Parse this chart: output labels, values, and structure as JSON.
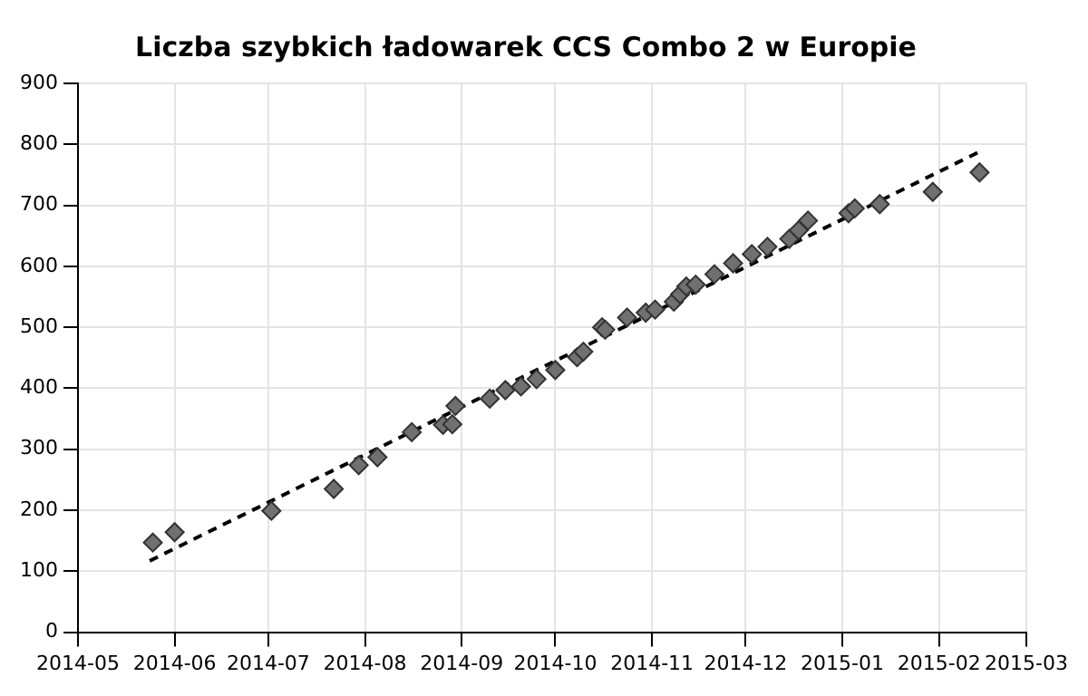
{
  "chart_data": {
    "type": "scatter",
    "title": "Liczba szybkich ładowarek CCS Combo 2 w Europie",
    "marker": "diamond",
    "grid": true,
    "legend": false,
    "xlim": [
      "2014-05-01",
      "2015-03-01"
    ],
    "xticks": [
      {
        "value": "2014-05-01",
        "label": "2014-05"
      },
      {
        "value": "2014-06-01",
        "label": "2014-06"
      },
      {
        "value": "2014-07-01",
        "label": "2014-07"
      },
      {
        "value": "2014-08-01",
        "label": "2014-08"
      },
      {
        "value": "2014-09-01",
        "label": "2014-09"
      },
      {
        "value": "2014-10-01",
        "label": "2014-10"
      },
      {
        "value": "2014-11-01",
        "label": "2014-11"
      },
      {
        "value": "2014-12-01",
        "label": "2014-12"
      },
      {
        "value": "2015-01-01",
        "label": "2015-01"
      },
      {
        "value": "2015-02-01",
        "label": "2015-02"
      },
      {
        "value": "2015-03-01",
        "label": "2015-03"
      }
    ],
    "ylim": [
      0,
      900
    ],
    "yticks": [
      0,
      100,
      200,
      300,
      400,
      500,
      600,
      700,
      800,
      900
    ],
    "series": [
      {
        "color": "#707070",
        "x": [
          "2014-05-25",
          "2014-06-01",
          "2014-07-02",
          "2014-07-22",
          "2014-07-30",
          "2014-08-05",
          "2014-08-16",
          "2014-08-26",
          "2014-08-29",
          "2014-08-30",
          "2014-09-10",
          "2014-09-15",
          "2014-09-20",
          "2014-09-25",
          "2014-10-01",
          "2014-10-08",
          "2014-10-10",
          "2014-10-16",
          "2014-10-17",
          "2014-10-24",
          "2014-10-30",
          "2014-11-02",
          "2014-11-08",
          "2014-11-10",
          "2014-11-12",
          "2014-11-15",
          "2014-11-21",
          "2014-11-27",
          "2014-12-03",
          "2014-12-08",
          "2014-12-15",
          "2014-12-18",
          "2014-12-21",
          "2015-01-03",
          "2015-01-05",
          "2015-01-13",
          "2015-01-30",
          "2015-02-14"
        ],
        "values": [
          147,
          164,
          199,
          235,
          274,
          287,
          328,
          340,
          341,
          371,
          383,
          397,
          403,
          415,
          430,
          451,
          460,
          500,
          496,
          516,
          524,
          529,
          542,
          554,
          567,
          570,
          587,
          605,
          620,
          632,
          645,
          659,
          675,
          687,
          695,
          702,
          722,
          754
        ]
      },
      {
        "type": "line",
        "color": "#000000",
        "line_style": "dashed",
        "marker": "none",
        "x": [
          "2014-05-24",
          "2015-02-14"
        ],
        "values": [
          117,
          788
        ]
      }
    ]
  }
}
